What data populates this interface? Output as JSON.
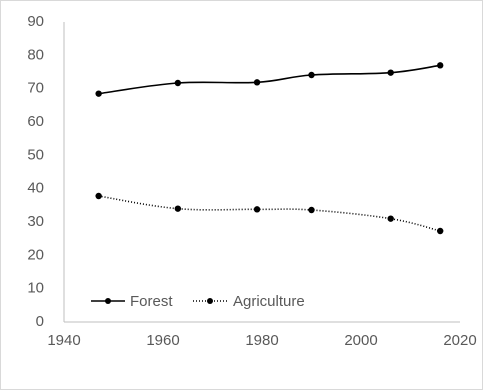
{
  "chart_data": {
    "type": "line",
    "title": "",
    "xlabel": "",
    "ylabel": "",
    "xlim": [
      1940,
      2020
    ],
    "ylim": [
      0,
      90
    ],
    "x_ticks": [
      "1940",
      "1960",
      "1980",
      "2000",
      "2020"
    ],
    "y_ticks": [
      "0",
      "10",
      "20",
      "30",
      "40",
      "50",
      "60",
      "70",
      "80",
      "90"
    ],
    "grid": false,
    "legend_position": "bottom-left inside",
    "series": [
      {
        "name": "Forest",
        "line_style": "solid",
        "color": "#000000",
        "x": [
          1947,
          1963,
          1979,
          1990,
          2006,
          2016
        ],
        "y": [
          68.5,
          71.7,
          71.9,
          74.1,
          74.8,
          77.0
        ]
      },
      {
        "name": "Agriculture",
        "line_style": "dotted",
        "color": "#000000",
        "x": [
          1947,
          1963,
          1979,
          1990,
          2006,
          2016
        ],
        "y": [
          37.8,
          34.0,
          33.8,
          33.6,
          31.0,
          27.3
        ]
      }
    ]
  }
}
